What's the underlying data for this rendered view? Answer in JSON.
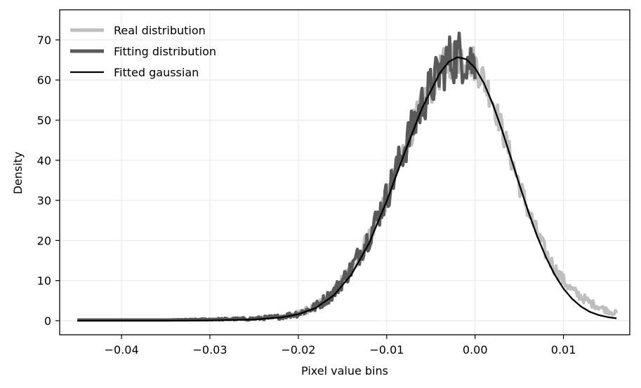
{
  "chart_data": {
    "type": "line",
    "title": "",
    "xlabel": "Pixel value bins",
    "ylabel": "Density",
    "xlim": [
      -0.047,
      0.0175
    ],
    "ylim": [
      -3.5,
      77.5
    ],
    "xticks": [
      -0.04,
      -0.03,
      -0.02,
      -0.01,
      0.0,
      0.01
    ],
    "xtick_labels": [
      "−0.04",
      "−0.03",
      "−0.02",
      "−0.01",
      "0.00",
      "0.01"
    ],
    "yticks": [
      0,
      10,
      20,
      30,
      40,
      50,
      60,
      70
    ],
    "ytick_labels": [
      "0",
      "10",
      "20",
      "30",
      "40",
      "50",
      "60",
      "70"
    ],
    "grid": true,
    "legend_position": "top-left",
    "series": [
      {
        "name": "Real distribution",
        "color": "#bfbfbf",
        "style": "thick-noisy",
        "x": [
          -0.045,
          -0.035,
          -0.025,
          -0.022,
          -0.02,
          -0.018,
          -0.016,
          -0.014,
          -0.012,
          -0.01,
          -0.008,
          -0.006,
          -0.004,
          -0.003,
          -0.002,
          -0.001,
          0.0,
          0.001,
          0.002,
          0.003,
          0.004,
          0.005,
          0.006,
          0.007,
          0.008,
          0.009,
          0.01,
          0.011,
          0.012,
          0.013,
          0.014,
          0.015,
          0.016
        ],
        "y": [
          0.2,
          0.2,
          0.5,
          1.0,
          1.8,
          3.5,
          7.0,
          13.0,
          21.0,
          31.0,
          43.0,
          54.0,
          62.0,
          65.0,
          66.0,
          65.5,
          64.0,
          60.0,
          55.0,
          48.0,
          41.0,
          34.0,
          27.5,
          22.0,
          17.0,
          13.0,
          10.0,
          7.5,
          6.0,
          4.5,
          3.5,
          2.5,
          1.8
        ],
        "noise": [
          0,
          0,
          0.3,
          0.5,
          0.7,
          1.0,
          1.4,
          2.0,
          2.5,
          3.0,
          3.5,
          4.0,
          4.5,
          5.0,
          5.0,
          4.5,
          4.5,
          4.0,
          3.5,
          3.2,
          3.0,
          2.8,
          2.5,
          2.2,
          2.0,
          1.8,
          1.6,
          1.4,
          1.2,
          1.0,
          0.9,
          0.8,
          0.7
        ]
      },
      {
        "name": "Fitting distribution",
        "color": "#595959",
        "style": "thick-noisy",
        "x": [
          -0.045,
          -0.035,
          -0.025,
          -0.022,
          -0.02,
          -0.018,
          -0.016,
          -0.014,
          -0.012,
          -0.01,
          -0.008,
          -0.006,
          -0.004,
          -0.003,
          -0.002,
          -0.001,
          0.0
        ],
        "y": [
          0.2,
          0.2,
          0.5,
          1.0,
          1.8,
          3.5,
          7.0,
          13.0,
          21.0,
          31.0,
          43.0,
          54.0,
          62.0,
          65.0,
          66.0,
          65.5,
          64.0
        ],
        "noise": [
          0,
          0,
          0.4,
          0.6,
          0.9,
          1.3,
          1.8,
          2.5,
          3.2,
          4.0,
          4.8,
          5.5,
          6.0,
          6.5,
          7.0,
          6.5,
          6.0
        ]
      },
      {
        "name": "Fitted gaussian",
        "color": "#000000",
        "style": "line",
        "x": [
          -0.045,
          -0.035,
          -0.03,
          -0.025,
          -0.022,
          -0.02,
          -0.018,
          -0.016,
          -0.014,
          -0.012,
          -0.01,
          -0.008,
          -0.006,
          -0.004,
          -0.003,
          -0.002,
          -0.001,
          0.0,
          0.001,
          0.002,
          0.003,
          0.004,
          0.005,
          0.006,
          0.007,
          0.008,
          0.009,
          0.01,
          0.011,
          0.012,
          0.013,
          0.014,
          0.015,
          0.016
        ],
        "y": [
          0.0,
          0.0,
          0.05,
          0.3,
          0.8,
          1.6,
          3.2,
          6.3,
          11.5,
          19.3,
          29.8,
          41.7,
          53.0,
          61.7,
          64.5,
          65.7,
          65.2,
          63.0,
          59.2,
          54.0,
          47.8,
          41.0,
          34.0,
          27.3,
          21.2,
          15.9,
          11.5,
          8.0,
          5.4,
          3.5,
          2.2,
          1.4,
          0.9,
          0.6
        ]
      }
    ]
  }
}
